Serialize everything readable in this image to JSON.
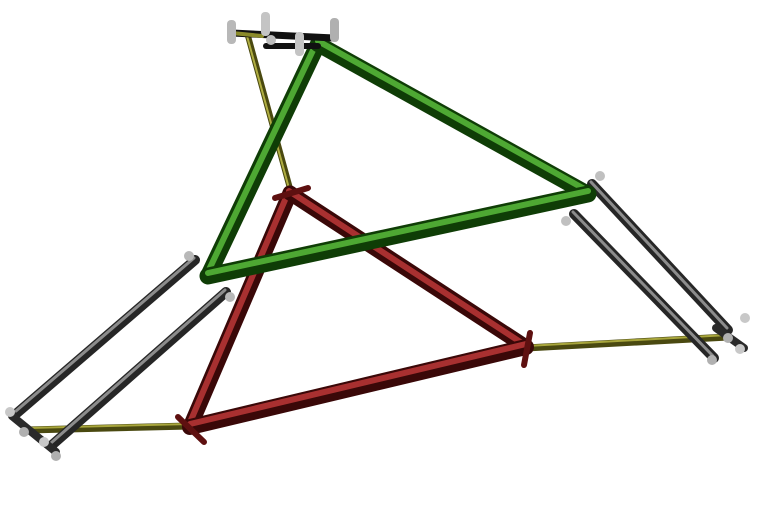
{
  "scene": {
    "background": "#ffffff",
    "description_label": "",
    "colors": {
      "green_tube": "#1f5e12",
      "green_tube_hi": "#3f9a2a",
      "red_tube": "#5e1212",
      "red_tube_hi": "#a02a2a",
      "grey_tube": "#3d3d3d",
      "grey_tube_hi": "#8a8a8a",
      "olive_tube": "#6b6a1a",
      "olive_tube_hi": "#b7b64a",
      "black_tube": "#151515",
      "pin": "#c9c9c9"
    }
  }
}
